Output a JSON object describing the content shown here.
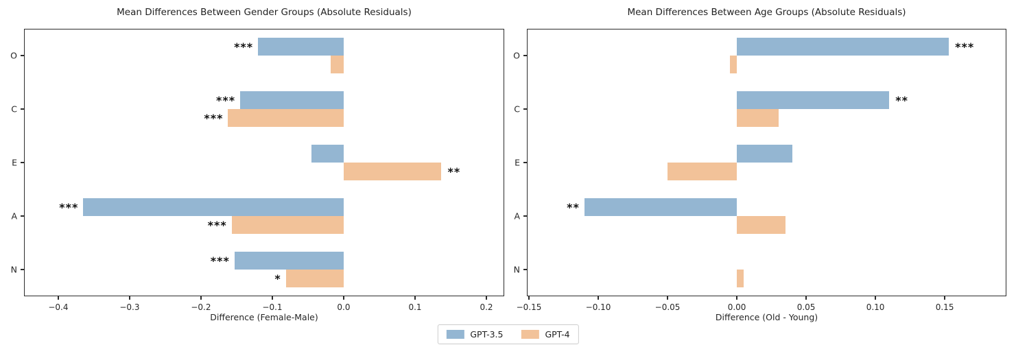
{
  "figure": {
    "background": "#ffffff"
  },
  "colors": {
    "gpt35": "#94b6d2",
    "gpt4": "#f2c299",
    "spine": "#2b2b2b",
    "text": "#1f1f1f",
    "legend_border": "#cccccc"
  },
  "legend": {
    "items": [
      {
        "label": "GPT-3.5",
        "color_key": "gpt35"
      },
      {
        "label": "GPT-4",
        "color_key": "gpt4"
      }
    ]
  },
  "chart_data": [
    {
      "type": "bar",
      "orientation": "horizontal",
      "title": "Mean Differences Between Gender Groups (Absolute Residuals)",
      "xlabel": "Difference (Female-Male)",
      "ylabel": "",
      "categories": [
        "O",
        "C",
        "E",
        "A",
        "N"
      ],
      "series": [
        {
          "name": "GPT-3.5",
          "color_key": "gpt35",
          "values": [
            -0.12,
            -0.145,
            -0.045,
            -0.365,
            -0.153
          ],
          "significance": [
            "***",
            "***",
            "",
            "***",
            "***"
          ]
        },
        {
          "name": "GPT-4",
          "color_key": "gpt4",
          "values": [
            -0.018,
            -0.162,
            0.137,
            -0.157,
            -0.081
          ],
          "significance": [
            "",
            "***",
            "**",
            "***",
            "*"
          ]
        }
      ],
      "xlim": [
        -0.448,
        0.225
      ],
      "xticks": [
        -0.4,
        -0.3,
        -0.2,
        -0.1,
        0.0,
        0.1,
        0.2
      ],
      "xtick_labels": [
        "−0.4",
        "−0.3",
        "−0.2",
        "−0.1",
        "0.0",
        "0.1",
        "0.2"
      ],
      "grid": false,
      "legend_position": "below-figure-center"
    },
    {
      "type": "bar",
      "orientation": "horizontal",
      "title": "Mean Differences Between Age Groups (Absolute Residuals)",
      "xlabel": "Difference (Old - Young)",
      "ylabel": "",
      "categories": [
        "O",
        "C",
        "E",
        "A",
        "N"
      ],
      "series": [
        {
          "name": "GPT-3.5",
          "color_key": "gpt35",
          "values": [
            0.153,
            0.11,
            0.04,
            -0.11,
            0.0
          ],
          "significance": [
            "***",
            "**",
            "",
            "**",
            ""
          ]
        },
        {
          "name": "GPT-4",
          "color_key": "gpt4",
          "values": [
            -0.005,
            0.03,
            -0.05,
            0.035,
            0.005
          ],
          "significance": [
            "",
            "",
            "",
            "",
            ""
          ]
        }
      ],
      "xlim": [
        -0.1515,
        0.1945
      ],
      "xticks": [
        -0.15,
        -0.1,
        -0.05,
        0.0,
        0.05,
        0.1,
        0.15
      ],
      "xtick_labels": [
        "−0.15",
        "−0.10",
        "−0.05",
        "0.00",
        "0.05",
        "0.10",
        "0.15"
      ],
      "grid": false,
      "legend_position": "below-figure-center"
    }
  ]
}
